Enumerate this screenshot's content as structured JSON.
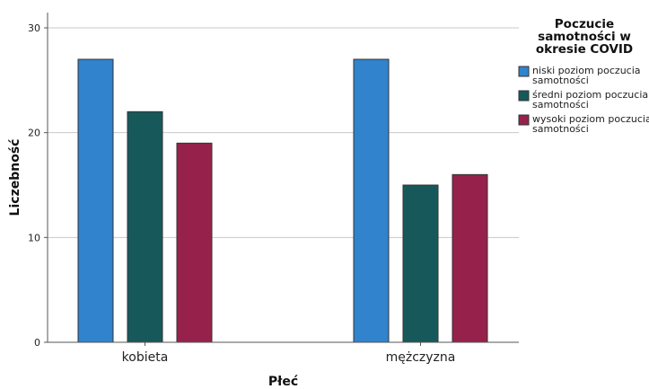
{
  "chart_data": {
    "type": "bar",
    "categories": [
      "kobieta",
      "mężczyzna"
    ],
    "series": [
      {
        "name": [
          "niski poziom poczucia",
          "samotności"
        ],
        "values": [
          27,
          27
        ],
        "color": "#3083cc"
      },
      {
        "name": [
          "średni poziom poczucia",
          "samotności"
        ],
        "values": [
          22,
          15
        ],
        "color": "#17595a"
      },
      {
        "name": [
          "wysoki poziom poczucia",
          "samotności"
        ],
        "values": [
          19,
          16
        ],
        "color": "#96224c"
      }
    ],
    "xlabel": "Płeć",
    "ylabel": "Liczebność",
    "ylim": [
      0,
      30
    ],
    "yticks": [
      0,
      10,
      20,
      30
    ],
    "grid": true,
    "legend": {
      "title": [
        "Poczucie",
        "samotności w",
        "okresie COVID"
      ],
      "position": "right"
    }
  }
}
